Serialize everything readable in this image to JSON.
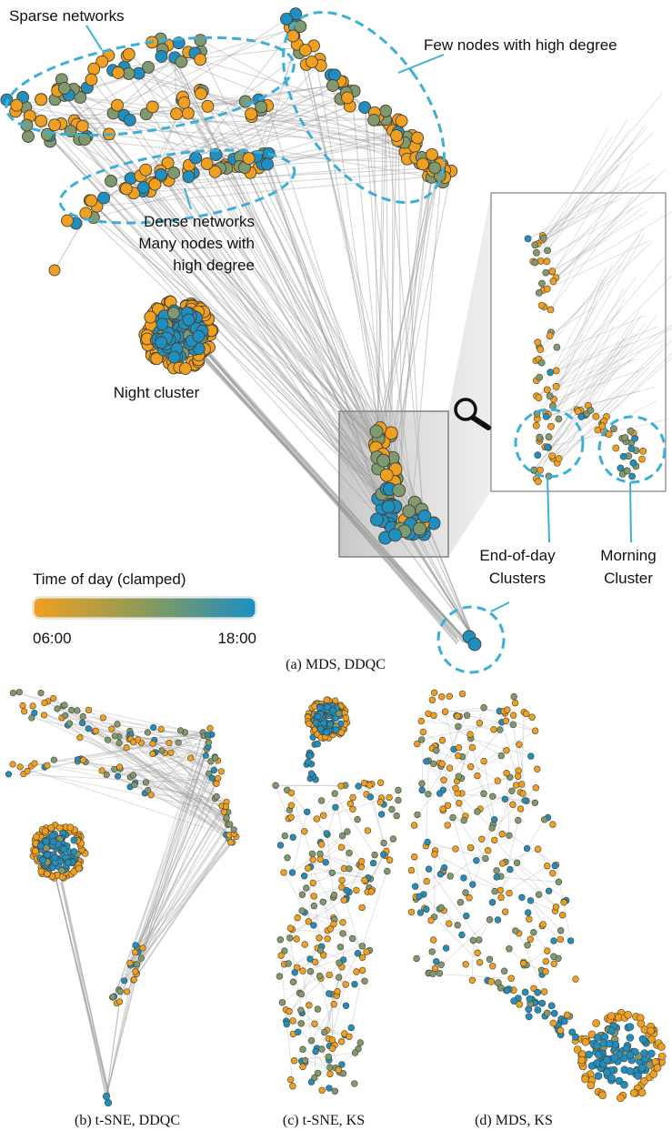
{
  "panel_a": {
    "annotations": {
      "sparse": "Sparse networks",
      "few_nodes": "Few nodes with high degree",
      "dense_1": "Dense networks",
      "dense_2": "Many nodes with",
      "dense_3": "high degree",
      "night": "Night cluster",
      "end_day_1": "End-of-day",
      "end_day_2": "Clusters",
      "morning_1": "Morning",
      "morning_2": "Cluster"
    },
    "legend": {
      "title": "Time of day (clamped)",
      "min_label": "06:00",
      "max_label": "18:00",
      "color_start": "#f0a020",
      "color_end": "#1a8ec4"
    },
    "caption": {
      "prefix": "(a) ",
      "method": "MDS, DDQC"
    }
  },
  "panel_b": {
    "caption": {
      "prefix": "(b) ",
      "method_1": "t-",
      "method_2": "SNE, DDQC"
    }
  },
  "panel_c": {
    "caption": {
      "prefix": "(c) ",
      "method_1": "t-",
      "method_2": "SNE, KS"
    }
  },
  "panel_d": {
    "caption": {
      "prefix": "(d) ",
      "method": "MDS, KS"
    }
  },
  "colors": {
    "orange": "#f0a020",
    "olive": "#7f9a70",
    "blue": "#1f8fc2",
    "edge": "#9a9a9a",
    "highlight": "#3ab0d8",
    "node_stroke": "#4a4030"
  }
}
